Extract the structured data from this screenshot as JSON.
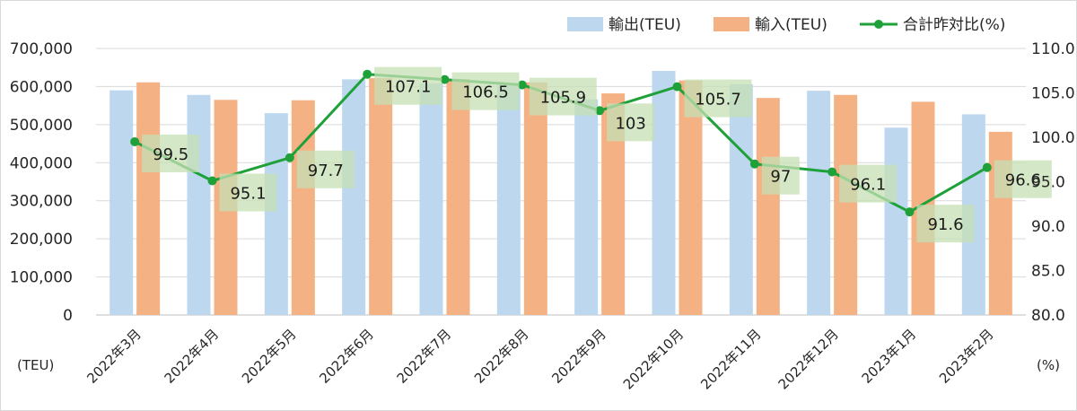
{
  "chart_data": {
    "type": "bar",
    "categories": [
      "2022年3月",
      "2022年4月",
      "2022年5月",
      "2022年6月",
      "2022年7月",
      "2022年8月",
      "2022年9月",
      "2022年10月",
      "2022年11月",
      "2022年12月",
      "2023年1月",
      "2023年2月"
    ],
    "series": [
      {
        "name": "輸出(TEU)",
        "type": "bar",
        "axis": "left",
        "color": "#bdd7ee",
        "values": [
          590000,
          578000,
          530000,
          619000,
          608000,
          606000,
          566000,
          641000,
          606000,
          589000,
          492000,
          527000
        ]
      },
      {
        "name": "輸入(TEU)",
        "type": "bar",
        "axis": "left",
        "color": "#f4b183",
        "values": [
          611000,
          565000,
          564000,
          622000,
          620000,
          611000,
          582000,
          616000,
          570000,
          578000,
          560000,
          481000
        ]
      },
      {
        "name": "合計昨対比(%)",
        "type": "line",
        "axis": "right",
        "color": "#1fa13a",
        "values": [
          99.5,
          95.1,
          97.7,
          107.1,
          106.5,
          105.9,
          103,
          105.7,
          97,
          96.1,
          91.6,
          96.6
        ]
      }
    ],
    "data_labels": [
      "99.5",
      "95.1",
      "97.7",
      "107.1",
      "106.5",
      "105.9",
      "103",
      "105.7",
      "97",
      "96.1",
      "91.6",
      "96.6"
    ],
    "ylim_left": [
      0,
      700000
    ],
    "yticks_left": [
      "0",
      "100,000",
      "200,000",
      "300,000",
      "400,000",
      "500,000",
      "600,000",
      "700,000"
    ],
    "ylim_right": [
      80,
      110
    ],
    "yticks_right": [
      "80.0",
      "85.0",
      "90.0",
      "95.0",
      "100.0",
      "105.0",
      "110.0"
    ],
    "ylabel_left": "(TEU)",
    "ylabel_right": "(%)",
    "grid": true,
    "legend_position": "top-right"
  }
}
